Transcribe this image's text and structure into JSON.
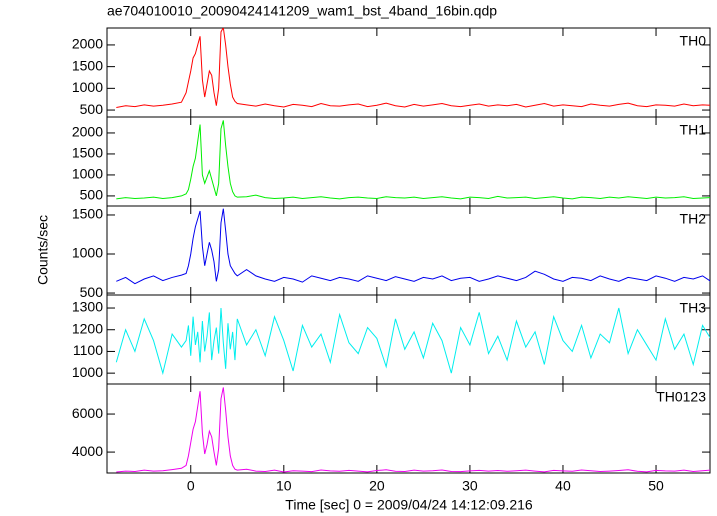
{
  "chart_data": {
    "type": "line",
    "title": "ae704010010_20090424141209_wam1_bst_4band_16bin.qdp",
    "xlabel": "Time [sec] 0 = 2009/04/24 14:12:09.216",
    "ylabel": "Counts/sec",
    "xlim": [
      -9,
      55.8
    ],
    "xticks": [
      0,
      10,
      20,
      30,
      40,
      50
    ],
    "x": [
      -8,
      -7,
      -6,
      -5,
      -4,
      -3,
      -2,
      -1,
      -0.5,
      -0.25,
      0,
      0.25,
      0.5,
      0.75,
      1,
      1.25,
      1.5,
      1.75,
      2,
      2.25,
      2.5,
      2.75,
      3,
      3.25,
      3.5,
      3.75,
      4,
      4.25,
      4.5,
      4.75,
      5,
      6,
      7,
      8,
      9,
      10,
      11,
      12,
      13,
      14,
      15,
      16,
      17,
      18,
      19,
      20,
      21,
      22,
      23,
      24,
      25,
      26,
      27,
      28,
      29,
      30,
      31,
      32,
      33,
      34,
      35,
      36,
      37,
      38,
      39,
      40,
      41,
      42,
      43,
      44,
      45,
      46,
      47,
      48,
      49,
      50,
      51,
      52,
      53,
      54,
      55,
      56
    ],
    "series": [
      {
        "name": "TH0",
        "color": "#ff0000",
        "ylim": [
          340,
          2390
        ],
        "yticks": [
          500,
          1000,
          1500,
          2000
        ],
        "values": [
          560,
          600,
          580,
          620,
          590,
          610,
          640,
          680,
          900,
          1150,
          1400,
          1700,
          1800,
          2000,
          2200,
          1200,
          800,
          1100,
          1400,
          1300,
          900,
          600,
          1000,
          2300,
          2400,
          2000,
          1500,
          1100,
          800,
          700,
          650,
          620,
          590,
          640,
          600,
          570,
          630,
          610,
          580,
          650,
          600,
          590,
          620,
          640,
          580,
          610,
          660,
          600,
          570,
          630,
          590,
          620,
          650,
          600,
          580,
          610,
          640,
          590,
          620,
          600,
          630,
          570,
          610,
          650,
          590,
          620,
          600,
          580,
          640,
          610,
          590,
          630,
          660,
          600,
          580,
          620,
          610,
          590,
          640,
          600,
          620,
          610
        ]
      },
      {
        "name": "TH1",
        "color": "#00ee00",
        "ylim": [
          260,
          2380
        ],
        "yticks": [
          500,
          1000,
          1500,
          2000
        ],
        "values": [
          430,
          460,
          440,
          450,
          470,
          440,
          460,
          500,
          550,
          650,
          900,
          1200,
          1400,
          1800,
          2200,
          1000,
          800,
          950,
          1100,
          900,
          700,
          500,
          800,
          2100,
          2300,
          1700,
          1200,
          800,
          600,
          500,
          470,
          480,
          520,
          460,
          440,
          450,
          470,
          440,
          460,
          480,
          450,
          430,
          460,
          470,
          450,
          440,
          480,
          460,
          450,
          470,
          440,
          460,
          480,
          450,
          430,
          470,
          460,
          440,
          490,
          450,
          460,
          470,
          440,
          460,
          480,
          450,
          430,
          470,
          460,
          440,
          470,
          450,
          480,
          460,
          440,
          470,
          450,
          460,
          480,
          440,
          450,
          460
        ]
      },
      {
        "name": "TH2",
        "color": "#0000ee",
        "ylim": [
          475,
          1615
        ],
        "yticks": [
          500,
          1000,
          1500
        ],
        "values": [
          650,
          700,
          620,
          680,
          720,
          660,
          700,
          730,
          750,
          850,
          1000,
          1200,
          1350,
          1450,
          1550,
          1100,
          850,
          1000,
          1150,
          1050,
          900,
          650,
          800,
          1400,
          1580,
          1300,
          1000,
          850,
          800,
          750,
          720,
          800,
          720,
          680,
          650,
          700,
          680,
          640,
          720,
          690,
          660,
          700,
          680,
          650,
          720,
          690,
          660,
          710,
          680,
          650,
          700,
          680,
          720,
          660,
          690,
          700,
          650,
          680,
          720,
          690,
          660,
          700,
          780,
          740,
          680,
          650,
          700,
          690,
          660,
          720,
          680,
          650,
          700,
          680,
          660,
          720,
          690,
          650,
          700,
          680,
          720,
          640
        ]
      },
      {
        "name": "TH3",
        "color": "#00eeee",
        "ylim": [
          950,
          1360
        ],
        "yticks": [
          1000,
          1100,
          1200,
          1300
        ],
        "values": [
          1050,
          1200,
          1100,
          1250,
          1150,
          1000,
          1180,
          1120,
          1150,
          1220,
          1080,
          1260,
          1130,
          1190,
          1050,
          1240,
          1100,
          1170,
          1280,
          1060,
          1150,
          1210,
          1090,
          1300,
          1140,
          1020,
          1230,
          1110,
          1190,
          1060,
          1250,
          1130,
          1200,
          1080,
          1260,
          1150,
          1010,
          1220,
          1120,
          1180,
          1050,
          1270,
          1140,
          1090,
          1210,
          1160,
          1030,
          1250,
          1110,
          1190,
          1070,
          1230,
          1150,
          1000,
          1210,
          1130,
          1280,
          1090,
          1170,
          1060,
          1240,
          1120,
          1190,
          1040,
          1260,
          1150,
          1100,
          1220,
          1070,
          1180,
          1140,
          1300,
          1090,
          1200,
          1130,
          1060,
          1250,
          1110,
          1180,
          1040,
          1220,
          1150
        ]
      },
      {
        "name": "TH0123",
        "color": "#ee00ee",
        "ylim": [
          2900,
          7580
        ],
        "yticks": [
          4000,
          6000
        ],
        "values": [
          2950,
          3000,
          2980,
          3050,
          3000,
          3020,
          3080,
          3150,
          3300,
          3800,
          4500,
          5200,
          5600,
          6400,
          7200,
          5000,
          3900,
          4400,
          5100,
          4800,
          4000,
          3300,
          4200,
          6800,
          7400,
          6200,
          4800,
          3800,
          3300,
          3100,
          3050,
          3100,
          3000,
          2980,
          3050,
          2950,
          3020,
          3000,
          2970,
          3060,
          3010,
          2990,
          3040,
          3000,
          2960,
          3030,
          3070,
          2990,
          2980,
          3050,
          3000,
          3020,
          3060,
          2980,
          2970,
          3010,
          3040,
          3000,
          3030,
          2990,
          3020,
          3050,
          3000,
          2960,
          3040,
          3010,
          2990,
          3060,
          3020,
          2980,
          3000,
          3030,
          3070,
          2990,
          2960,
          3040,
          3010,
          3000,
          3050,
          2980,
          3020,
          3060
        ]
      }
    ]
  }
}
